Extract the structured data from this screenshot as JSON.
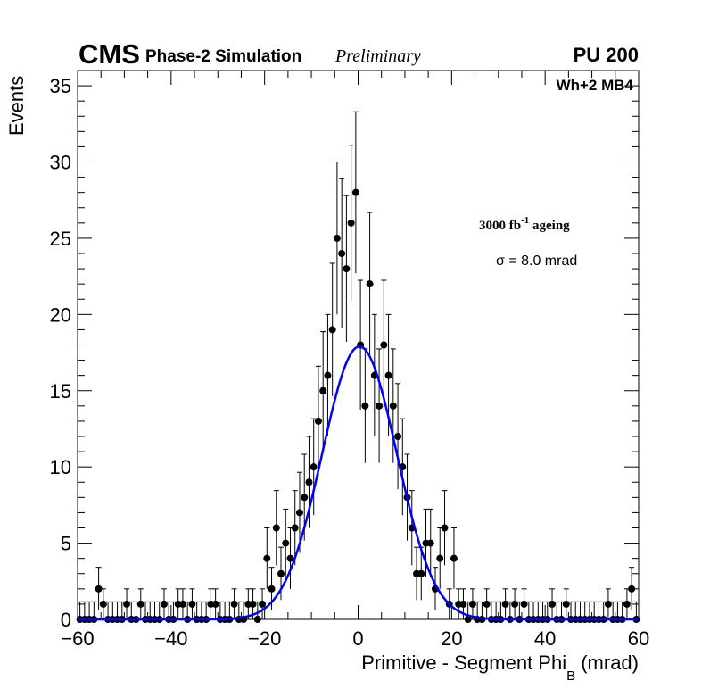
{
  "chart_data": {
    "type": "scatter",
    "header": {
      "experiment": "CMS",
      "subtitle": "Phase-2 Simulation",
      "status": "Preliminary",
      "pileup": "PU 200"
    },
    "region_label": "Wh+2 MB4",
    "ageing_label": {
      "text": "3000 fb",
      "sup": "-1",
      "suffix": " ageing"
    },
    "sigma_label": "σ = 8.0 mrad",
    "xlabel": {
      "main": "Primitive - Segment Phi",
      "sub": "B",
      "unit": " (mrad)"
    },
    "ylabel": "Events",
    "xlim": [
      -60,
      60
    ],
    "ylim": [
      0,
      36
    ],
    "xticks": [
      -60,
      -40,
      -20,
      0,
      20,
      40,
      60
    ],
    "xtick_labels": [
      "−60",
      "−40",
      "−20",
      "0",
      "20",
      "40",
      "60"
    ],
    "yticks": [
      0,
      5,
      10,
      15,
      20,
      25,
      30,
      35
    ],
    "ytick_labels": [
      "0",
      "5",
      "10",
      "15",
      "20",
      "25",
      "30",
      "35"
    ],
    "series": [
      {
        "name": "data",
        "marker": "circle",
        "color": "#000000",
        "x": [
          -59.5,
          -58.5,
          -57.5,
          -56.5,
          -55.5,
          -54.5,
          -53.5,
          -52.5,
          -51.5,
          -50.5,
          -49.5,
          -48.5,
          -47.5,
          -46.5,
          -45.5,
          -44.5,
          -43.5,
          -42.5,
          -41.5,
          -40.5,
          -39.5,
          -38.5,
          -37.5,
          -36.5,
          -35.5,
          -34.5,
          -33.5,
          -32.5,
          -31.5,
          -30.5,
          -29.5,
          -28.5,
          -27.5,
          -26.5,
          -25.5,
          -24.5,
          -23.5,
          -22.5,
          -21.5,
          -20.5,
          -19.5,
          -18.5,
          -17.5,
          -16.5,
          -15.5,
          -14.5,
          -13.5,
          -12.5,
          -11.5,
          -10.5,
          -9.5,
          -8.5,
          -7.5,
          -6.5,
          -5.5,
          -4.5,
          -3.5,
          -2.5,
          -1.5,
          -0.5,
          0.5,
          1.5,
          2.5,
          3.5,
          4.5,
          5.5,
          6.5,
          7.5,
          8.5,
          9.5,
          10.5,
          11.5,
          12.5,
          13.5,
          14.5,
          15.5,
          16.5,
          17.5,
          18.5,
          19.5,
          20.5,
          21.5,
          22.5,
          23.5,
          24.5,
          25.5,
          26.5,
          27.5,
          28.5,
          29.5,
          30.5,
          31.5,
          32.5,
          33.5,
          34.5,
          35.5,
          36.5,
          37.5,
          38.5,
          39.5,
          40.5,
          41.5,
          42.5,
          43.5,
          44.5,
          45.5,
          46.5,
          47.5,
          48.5,
          49.5,
          50.5,
          51.5,
          52.5,
          53.5,
          54.5,
          55.5,
          56.5,
          57.5,
          58.5,
          59.5
        ],
        "y": [
          0,
          0,
          0,
          0,
          2,
          1,
          0,
          0,
          0,
          0,
          1,
          0,
          0,
          1,
          0,
          0,
          0,
          0,
          1,
          0,
          0,
          1,
          1,
          0,
          1,
          0,
          0,
          0,
          1,
          1,
          0,
          0,
          0,
          1,
          0,
          0,
          1,
          1,
          0,
          1,
          4,
          2,
          6,
          3,
          5,
          4,
          6,
          7,
          8,
          9,
          10,
          13,
          15,
          16,
          19,
          25,
          24,
          23,
          26,
          28,
          18,
          14,
          22,
          16,
          14,
          18,
          16,
          14,
          12,
          10,
          8,
          6,
          3,
          3,
          5,
          5,
          2,
          4,
          6,
          1,
          4,
          1,
          1,
          0,
          1,
          0,
          0,
          1,
          0,
          0,
          0,
          1,
          0,
          1,
          0,
          1,
          0,
          0,
          0,
          0,
          0,
          1,
          0,
          0,
          1,
          0,
          0,
          0,
          0,
          0,
          0,
          0,
          0,
          1,
          0,
          0,
          0,
          1,
          2,
          0
        ]
      },
      {
        "name": "Gaussian fit",
        "type": "line",
        "color": "#0000ff",
        "function": "gaussian",
        "amplitude": 17.9,
        "mean": 0.3,
        "sigma": 8.0
      }
    ]
  }
}
